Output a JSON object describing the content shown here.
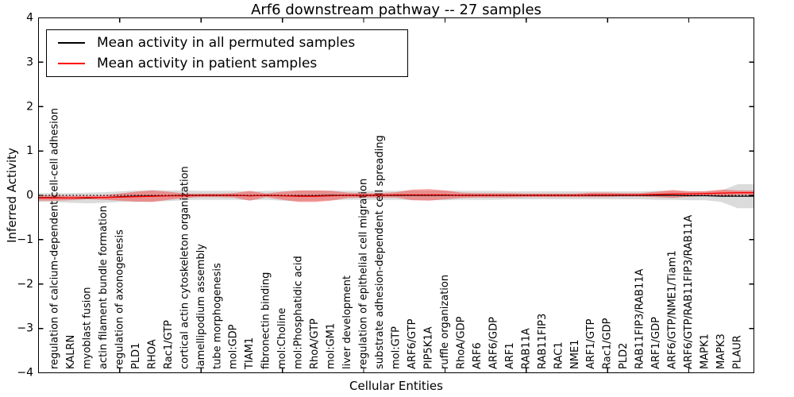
{
  "chart_data": {
    "type": "line",
    "title": "Arf6 downstream pathway -- 27 samples",
    "xlabel": "Cellular Entities",
    "ylabel": "Inferred Activity",
    "ylim": [
      -4,
      4
    ],
    "grid": false,
    "legend_position": "upper left",
    "background_color": "#ffffff",
    "yticks": [
      {
        "value": 4,
        "label": "4"
      },
      {
        "value": 3,
        "label": "3"
      },
      {
        "value": 2,
        "label": "2"
      },
      {
        "value": 1,
        "label": "1"
      },
      {
        "value": 0,
        "label": "0"
      },
      {
        "value": -1,
        "label": "−1"
      },
      {
        "value": -2,
        "label": "−2"
      },
      {
        "value": -3,
        "label": "−3"
      },
      {
        "value": -4,
        "label": "−4"
      }
    ],
    "xtick_positions": [
      5,
      10,
      15,
      20,
      25,
      30,
      35,
      40
    ],
    "categories": [
      "regulation of calcium-dependent cell-cell adhesion",
      "KALRN",
      "myoblast fusion",
      "actin filament bundle formation",
      "regulation of axonogenesis",
      "PLD1",
      "RHOA",
      "Rac1/GTP",
      "cortical actin cytoskeleton organization",
      "lamellipodium assembly",
      "tube morphogenesis",
      "mol:GDP",
      "TIAM1",
      "fibronectin binding",
      "mol:Choline",
      "mol:Phosphatidic acid",
      "RhoA/GTP",
      "mol:GM1",
      "liver development",
      "regulation of epithelial cell migration",
      "substrate adhesion-dependent cell spreading",
      "mol:GTP",
      "ARF6/GTP",
      "PIP5K1A",
      "ruffle organization",
      "RhoA/GDP",
      "ARF6",
      "ARF6/GDP",
      "ARF1",
      "RAB11A",
      "RAB11FIP3",
      "RAC1",
      "NME1",
      "ARF1/GTP",
      "Rac1/GDP",
      "PLD2",
      "RAB11FIP3/RAB11A",
      "ARF1/GDP",
      "ARF6/GTP/NME1/Tiam1",
      "ARF6/GTP/RAB11FIP3/RAB11A",
      "MAPK1",
      "MAPK3",
      "PLAUR"
    ],
    "series": [
      {
        "name": "Mean activity in all permuted samples",
        "color": "#000000",
        "values": [
          -0.05,
          -0.06,
          -0.06,
          -0.05,
          -0.03,
          -0.02,
          -0.01,
          -0.01,
          0,
          0,
          0,
          0,
          -0.01,
          0,
          -0.01,
          -0.01,
          -0.01,
          0,
          0,
          0,
          0,
          0,
          0,
          0,
          0,
          0,
          0,
          0,
          0,
          0,
          0,
          0,
          0,
          0,
          0,
          0,
          0,
          0,
          0,
          -0.01,
          -0.01,
          -0.02,
          -0.02
        ]
      },
      {
        "name": "Mean activity in patient samples",
        "color": "#ff0000",
        "values": [
          -0.06,
          -0.06,
          -0.05,
          -0.05,
          -0.04,
          -0.03,
          -0.02,
          -0.01,
          -0.01,
          0,
          0,
          0,
          -0.01,
          0,
          -0.01,
          -0.02,
          -0.02,
          -0.01,
          0,
          0,
          0,
          0.01,
          0.01,
          0.01,
          0.01,
          0,
          0,
          0,
          0,
          0,
          0,
          0,
          0,
          0.01,
          0.01,
          0.01,
          0.01,
          0.02,
          0.03,
          0.03,
          0.04,
          0.05,
          0.06
        ]
      }
    ],
    "bands": [
      {
        "name": "permuted samples std band",
        "series": 0,
        "color": "#000000",
        "opacity": 0.14,
        "halfwidths": [
          0.1,
          0.11,
          0.12,
          0.12,
          0.12,
          0.13,
          0.13,
          0.12,
          0.11,
          0.1,
          0.1,
          0.1,
          0.1,
          0.1,
          0.11,
          0.12,
          0.12,
          0.11,
          0.1,
          0.1,
          0.1,
          0.1,
          0.11,
          0.11,
          0.11,
          0.1,
          0.1,
          0.1,
          0.09,
          0.09,
          0.09,
          0.09,
          0.09,
          0.09,
          0.09,
          0.09,
          0.09,
          0.1,
          0.1,
          0.1,
          0.1,
          0.13,
          0.27
        ]
      },
      {
        "name": "patient samples std band",
        "series": 1,
        "color": "#ff0000",
        "opacity": 0.35,
        "halfwidths": [
          0.06,
          0.05,
          0.04,
          0.05,
          0.08,
          0.11,
          0.13,
          0.09,
          0.05,
          0.04,
          0.04,
          0.05,
          0.11,
          0.04,
          0.09,
          0.13,
          0.13,
          0.11,
          0.06,
          0.05,
          0.05,
          0.06,
          0.12,
          0.13,
          0.1,
          0.06,
          0.05,
          0.05,
          0.05,
          0.04,
          0.04,
          0.04,
          0.04,
          0.05,
          0.05,
          0.04,
          0.04,
          0.06,
          0.09,
          0.06,
          0.05,
          0.08,
          0.05
        ]
      }
    ],
    "zero_line": {
      "value": 0,
      "color": "#000000",
      "style": "dotted"
    }
  }
}
